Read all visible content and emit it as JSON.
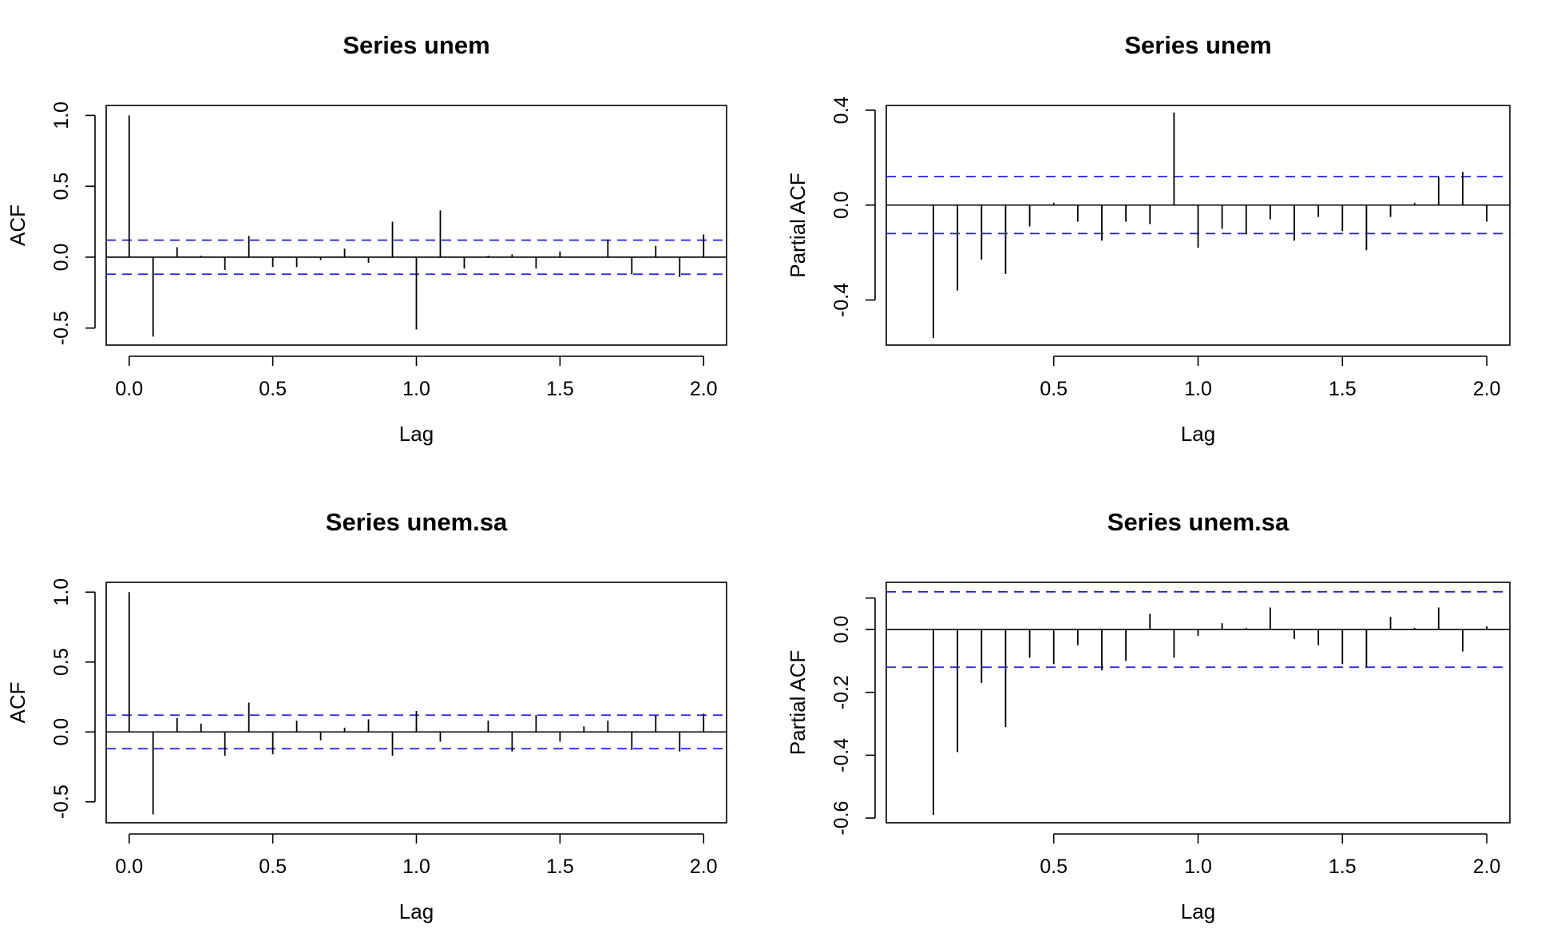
{
  "chart_data": [
    {
      "id": "acf-unem",
      "type": "bar",
      "title": "Series  unem",
      "xlabel": "Lag",
      "ylabel": "ACF",
      "xlim": [
        -0.08,
        2.08
      ],
      "ylim": [
        -0.62,
        1.07
      ],
      "xticks": [
        {
          "value": 0,
          "label": "0.0"
        },
        {
          "value": 0.5,
          "label": "0.5"
        },
        {
          "value": 1,
          "label": "1.0"
        },
        {
          "value": 1.5,
          "label": "1.5"
        },
        {
          "value": 2,
          "label": "2.0"
        }
      ],
      "yticks": [
        {
          "value": -0.5,
          "label": "-0.5"
        },
        {
          "value": 0,
          "label": "0.0"
        },
        {
          "value": 0.5,
          "label": "0.5"
        },
        {
          "value": 1,
          "label": "1.0"
        }
      ],
      "ci": 0.12,
      "x": [
        0,
        0.0833,
        0.1667,
        0.25,
        0.3333,
        0.4167,
        0.5,
        0.5833,
        0.6667,
        0.75,
        0.8333,
        0.9167,
        1,
        1.0833,
        1.1667,
        1.25,
        1.3333,
        1.4167,
        1.5,
        1.5833,
        1.6667,
        1.75,
        1.8333,
        1.9167,
        2
      ],
      "values": [
        1.0,
        -0.56,
        0.07,
        0.01,
        -0.09,
        0.15,
        -0.07,
        -0.07,
        -0.02,
        0.06,
        -0.04,
        0.25,
        -0.51,
        0.33,
        -0.08,
        0.01,
        0.02,
        -0.08,
        0.04,
        0.0,
        0.12,
        -0.12,
        0.08,
        -0.14,
        0.16
      ]
    },
    {
      "id": "pacf-unem",
      "type": "bar",
      "title": "Series  unem",
      "xlabel": "Lag",
      "ylabel": "Partial ACF",
      "xlim": [
        -0.08,
        2.08
      ],
      "ylim": [
        -0.59,
        0.42
      ],
      "xticks": [
        {
          "value": 0.5,
          "label": "0.5"
        },
        {
          "value": 1,
          "label": "1.0"
        },
        {
          "value": 1.5,
          "label": "1.5"
        },
        {
          "value": 2,
          "label": "2.0"
        }
      ],
      "yticks": [
        {
          "value": -0.4,
          "label": "-0.4"
        },
        {
          "value": 0,
          "label": "0.0"
        },
        {
          "value": 0.4,
          "label": "0.4"
        }
      ],
      "ci": 0.12,
      "x": [
        0.0833,
        0.1667,
        0.25,
        0.3333,
        0.4167,
        0.5,
        0.5833,
        0.6667,
        0.75,
        0.8333,
        0.9167,
        1,
        1.0833,
        1.1667,
        1.25,
        1.3333,
        1.4167,
        1.5,
        1.5833,
        1.6667,
        1.75,
        1.8333,
        1.9167,
        2
      ],
      "values": [
        -0.56,
        -0.36,
        -0.23,
        -0.29,
        -0.09,
        0.01,
        -0.07,
        -0.15,
        -0.07,
        -0.08,
        0.39,
        -0.18,
        -0.1,
        -0.12,
        -0.06,
        -0.15,
        -0.05,
        -0.11,
        -0.19,
        -0.05,
        0.01,
        0.12,
        0.14,
        -0.07
      ]
    },
    {
      "id": "acf-unem-sa",
      "type": "bar",
      "title": "Series  unem.sa",
      "xlabel": "Lag",
      "ylabel": "ACF",
      "xlim": [
        -0.08,
        2.08
      ],
      "ylim": [
        -0.65,
        1.07
      ],
      "xticks": [
        {
          "value": 0,
          "label": "0.0"
        },
        {
          "value": 0.5,
          "label": "0.5"
        },
        {
          "value": 1,
          "label": "1.0"
        },
        {
          "value": 1.5,
          "label": "1.5"
        },
        {
          "value": 2,
          "label": "2.0"
        }
      ],
      "yticks": [
        {
          "value": -0.5,
          "label": "-0.5"
        },
        {
          "value": 0,
          "label": "0.0"
        },
        {
          "value": 0.5,
          "label": "0.5"
        },
        {
          "value": 1,
          "label": "1.0"
        }
      ],
      "ci": 0.12,
      "x": [
        0,
        0.0833,
        0.1667,
        0.25,
        0.3333,
        0.4167,
        0.5,
        0.5833,
        0.6667,
        0.75,
        0.8333,
        0.9167,
        1,
        1.0833,
        1.1667,
        1.25,
        1.3333,
        1.4167,
        1.5,
        1.5833,
        1.6667,
        1.75,
        1.8333,
        1.9167,
        2
      ],
      "values": [
        1.0,
        -0.59,
        0.1,
        0.06,
        -0.17,
        0.21,
        -0.16,
        0.08,
        -0.06,
        0.03,
        0.09,
        -0.17,
        0.15,
        -0.07,
        0.0,
        0.08,
        -0.14,
        0.12,
        -0.07,
        0.04,
        0.08,
        -0.13,
        0.12,
        -0.14,
        0.13
      ]
    },
    {
      "id": "pacf-unem-sa",
      "type": "bar",
      "title": "Series  unem.sa",
      "xlabel": "Lag",
      "ylabel": "Partial ACF",
      "xlim": [
        -0.08,
        2.08
      ],
      "ylim": [
        -0.615,
        0.15
      ],
      "xticks": [
        {
          "value": 0.5,
          "label": "0.5"
        },
        {
          "value": 1,
          "label": "1.0"
        },
        {
          "value": 1.5,
          "label": "1.5"
        },
        {
          "value": 2,
          "label": "2.0"
        }
      ],
      "yticks": [
        {
          "value": -0.6,
          "label": "-0.6"
        },
        {
          "value": -0.4,
          "label": "-0.4"
        },
        {
          "value": -0.2,
          "label": "-0.2"
        },
        {
          "value": 0,
          "label": "0.0"
        },
        {
          "value": 0.1,
          "label": ""
        }
      ],
      "ci": 0.12,
      "x": [
        0.0833,
        0.1667,
        0.25,
        0.3333,
        0.4167,
        0.5,
        0.5833,
        0.6667,
        0.75,
        0.8333,
        0.9167,
        1,
        1.0833,
        1.1667,
        1.25,
        1.3333,
        1.4167,
        1.5,
        1.5833,
        1.6667,
        1.75,
        1.8333,
        1.9167,
        2
      ],
      "values": [
        -0.59,
        -0.39,
        -0.17,
        -0.31,
        -0.09,
        -0.11,
        -0.05,
        -0.13,
        -0.1,
        0.05,
        -0.09,
        -0.02,
        0.02,
        0.005,
        0.07,
        -0.03,
        -0.05,
        -0.11,
        -0.12,
        0.04,
        0.005,
        0.07,
        -0.07,
        0.01
      ]
    }
  ]
}
